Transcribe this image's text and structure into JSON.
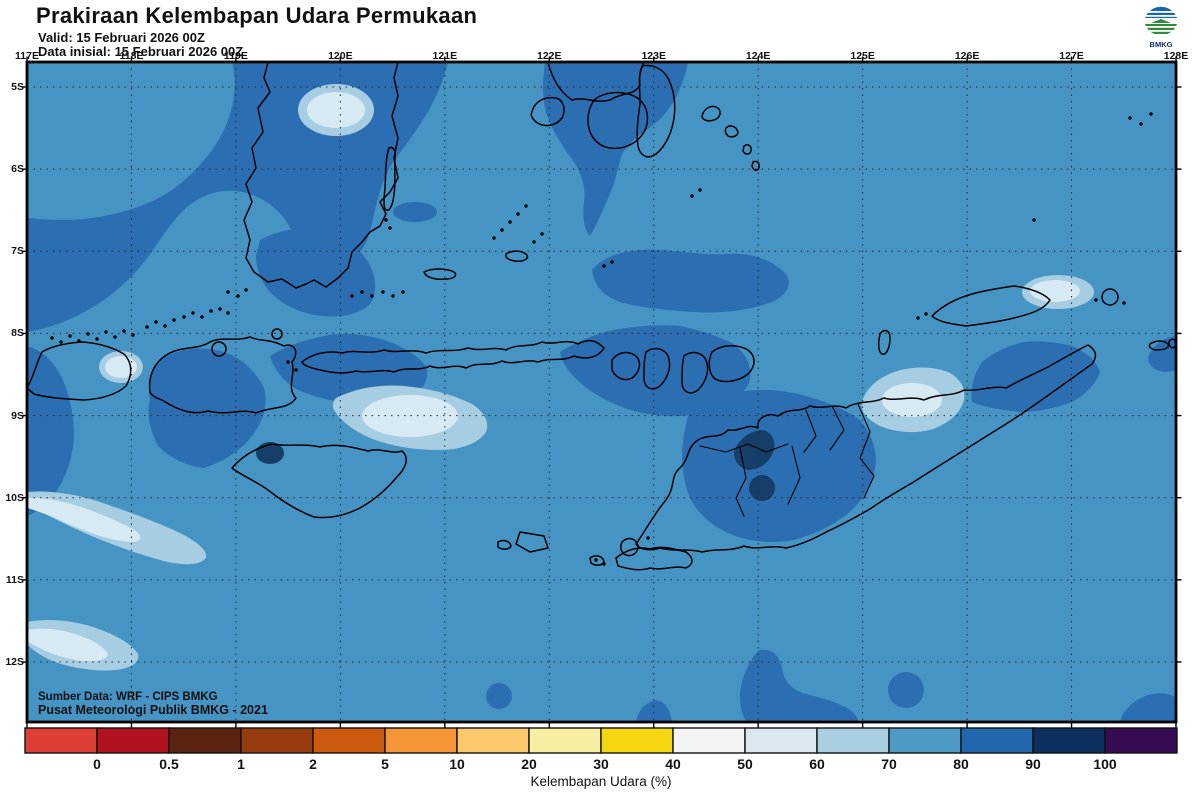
{
  "header": {
    "title": "Prakiraan Kelembapan Udara Permukaan",
    "valid_line": "Valid: 15 Februari 2026 00Z",
    "init_line": "Data inisial: 15 Februari 2026 00Z",
    "logo_text": "BMKG"
  },
  "map": {
    "lon_labels": [
      "117E",
      "118E",
      "119E",
      "120E",
      "121E",
      "122E",
      "123E",
      "124E",
      "125E",
      "126E",
      "127E",
      "128E"
    ],
    "lat_labels": [
      "5S",
      "6S",
      "7S",
      "8S",
      "9S",
      "10S",
      "11S",
      "12S"
    ],
    "source_line1": "Sumber Data: WRF - CIPS BMKG",
    "source_line2": "Pusat Meteorologi Publik BMKG - 2021"
  },
  "colorbar": {
    "axis_label": "Kelembapan Udara (%)",
    "tick_labels": [
      "0",
      "0.5",
      "1",
      "2",
      "5",
      "10",
      "20",
      "30",
      "40",
      "50",
      "60",
      "70",
      "80",
      "90",
      "100"
    ],
    "segment_colors": [
      "#dd3e36",
      "#b0121f",
      "#5a2410",
      "#963c0e",
      "#cc5a0e",
      "#f59538",
      "#fbc96c",
      "#f6efa2",
      "#f6d511",
      "#f4f4f2",
      "#dce8f0",
      "#abcfe2",
      "#4d9ac7",
      "#2267ad",
      "#0c2f5e",
      "#370b51"
    ]
  },
  "palette": {
    "ocean_70_80": "#4694c4",
    "shade_80_90": "#2b6fb2",
    "shade_90_100": "#153e68",
    "shade_60_70": "#a7cde2",
    "shade_50_60": "#d7e9f3",
    "coastline": "#000000"
  },
  "chart_data": {
    "type": "heatmap",
    "title": "Prakiraan Kelembapan Udara Permukaan",
    "xlabel": "Kelembapan Udara (%)",
    "x_axis_ticks": [
      "117E",
      "118E",
      "119E",
      "120E",
      "121E",
      "122E",
      "123E",
      "124E",
      "125E",
      "126E",
      "127E",
      "128E"
    ],
    "y_axis_ticks": [
      "5S",
      "6S",
      "7S",
      "8S",
      "9S",
      "10S",
      "11S",
      "12S"
    ],
    "legend_bins": [
      "<0",
      "0-0.5",
      "0.5-1",
      "1-2",
      "2-5",
      "5-10",
      "10-20",
      "20-30",
      "30-40",
      "40-50",
      "50-60",
      "60-70",
      "70-80",
      "80-90",
      "90-100",
      ">100"
    ],
    "legend_position": "bottom",
    "grid": true,
    "dominant_value_range": "70-80",
    "notes": "Surface relative humidity forecast over Lesser Sunda Islands / South Sulawesi region; mostly 70-80% with patches of 80-90%, small 90-100% cores over Sumba and West Timor, and 50-70% patches near Lombok, south of Flores, East Timor and Wetar."
  }
}
